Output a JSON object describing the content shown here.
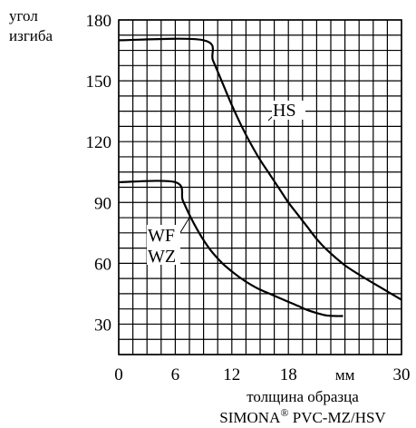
{
  "chart_data": {
    "type": "line",
    "ylabel_line1": "угол",
    "ylabel_line2": "изгиба",
    "xlabel": "толщина образца",
    "x_unit": "мм",
    "caption": "SIMONA",
    "caption_mark": "®",
    "caption_rest": " PVC-MZ/HSV",
    "xlim": [
      0,
      30
    ],
    "ylim": [
      15,
      180
    ],
    "x_ticks": [
      {
        "value": 0,
        "label": "0"
      },
      {
        "value": 6,
        "label": "6"
      },
      {
        "value": 12,
        "label": "12"
      },
      {
        "value": 18,
        "label": "18"
      },
      {
        "value": 30,
        "label": "30"
      }
    ],
    "x_unit_value": 24,
    "y_ticks": [
      {
        "value": 180,
        "label": "180"
      },
      {
        "value": 150,
        "label": "150"
      },
      {
        "value": 120,
        "label": "120"
      },
      {
        "value": 90,
        "label": "90"
      },
      {
        "value": 60,
        "label": "60"
      },
      {
        "value": 30,
        "label": "30"
      }
    ],
    "grid": true,
    "grid_x_step": 1.5,
    "grid_y_step": 7.5,
    "series": [
      {
        "name": "HS",
        "x": [
          0,
          9,
          10,
          11,
          12,
          13,
          14,
          15,
          16,
          17,
          18,
          19,
          20,
          21,
          22,
          24,
          26,
          28,
          30
        ],
        "y": [
          170,
          170,
          160,
          149,
          138,
          128,
          119,
          111,
          104,
          97,
          90,
          84,
          78,
          72,
          67,
          59,
          53,
          47.5,
          42
        ]
      },
      {
        "name": "WF / WZ",
        "labels": [
          "WF",
          "WZ"
        ],
        "x": [
          0,
          6,
          6.8,
          7.6,
          8.4,
          9.2,
          10,
          11,
          12,
          13,
          14,
          15,
          16,
          17,
          18,
          19,
          20,
          21,
          22,
          23,
          23.8
        ],
        "y": [
          100,
          100,
          91,
          83,
          76,
          70,
          65,
          60,
          56,
          52.5,
          49.5,
          47,
          45,
          43,
          41,
          39,
          37,
          35.5,
          34.3,
          34,
          34
        ]
      }
    ],
    "annotations": [
      {
        "text": "HS",
        "series": "HS"
      },
      {
        "text": "WF",
        "series": "WF / WZ"
      },
      {
        "text": "WZ",
        "series": "WF / WZ"
      }
    ]
  }
}
